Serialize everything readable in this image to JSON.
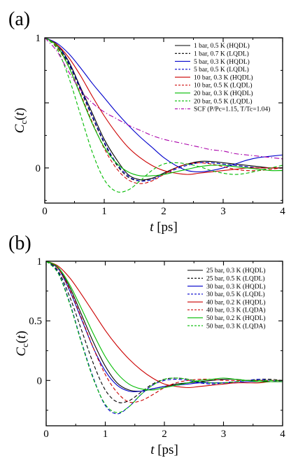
{
  "chart_data": [
    {
      "type": "line",
      "panel_label": "(a)",
      "xlabel": "t [ps]",
      "ylabel": "Cc(t)",
      "xlim": [
        0,
        4
      ],
      "ylim": [
        -0.27,
        1
      ],
      "xticks": [
        0,
        1,
        2,
        3,
        4
      ],
      "yticks": [
        0,
        0.5,
        1
      ],
      "ytick_labels": [
        "0",
        "",
        "1"
      ],
      "legend_position": "top-right",
      "series": [
        {
          "name": "1 bar, 0.5 K (HQDL)",
          "color": "#000000",
          "dash": "solid",
          "x": [
            0,
            0.2,
            0.4,
            0.6,
            0.8,
            1.0,
            1.2,
            1.4,
            1.6,
            1.8,
            2.0,
            2.2,
            2.4,
            2.6,
            2.8,
            3.0,
            3.2,
            3.4,
            3.6,
            3.8,
            4.0
          ],
          "y": [
            1,
            0.95,
            0.82,
            0.62,
            0.42,
            0.22,
            0.07,
            -0.05,
            -0.09,
            -0.08,
            -0.04,
            0.0,
            0.03,
            0.05,
            0.05,
            0.04,
            0.03,
            0.02,
            0.01,
            0.0,
            0.0
          ]
        },
        {
          "name": "1 bar, 0.7 K (LQDL)",
          "color": "#000000",
          "dash": "dashed",
          "x": [
            0,
            0.2,
            0.4,
            0.6,
            0.8,
            1.0,
            1.2,
            1.4,
            1.6,
            1.8,
            2.0,
            2.2,
            2.4,
            2.6,
            2.8,
            3.0,
            3.2,
            3.4,
            3.6,
            3.8,
            4.0
          ],
          "y": [
            1,
            0.94,
            0.8,
            0.6,
            0.39,
            0.19,
            0.03,
            -0.07,
            -0.1,
            -0.08,
            -0.04,
            0.0,
            0.03,
            0.04,
            0.04,
            0.03,
            0.02,
            0.01,
            0.0,
            0.0,
            0.0
          ]
        },
        {
          "name": "5 bar, 0.3 K (HQDL)",
          "color": "#0000cc",
          "dash": "solid",
          "x": [
            0,
            0.2,
            0.4,
            0.6,
            0.8,
            1.0,
            1.2,
            1.4,
            1.6,
            1.8,
            2.0,
            2.2,
            2.4,
            2.6,
            2.8,
            3.0,
            3.2,
            3.4,
            3.6,
            3.8,
            4.0
          ],
          "y": [
            1,
            0.96,
            0.88,
            0.77,
            0.65,
            0.54,
            0.43,
            0.33,
            0.24,
            0.16,
            0.08,
            0.02,
            -0.02,
            -0.03,
            -0.02,
            0.0,
            0.03,
            0.06,
            0.08,
            0.09,
            0.1
          ]
        },
        {
          "name": "5 bar, 0.5 K (LQDL)",
          "color": "#0000cc",
          "dash": "dashed",
          "x": [
            0,
            0.2,
            0.4,
            0.6,
            0.8,
            1.0,
            1.2,
            1.4,
            1.6,
            1.8,
            2.0,
            2.2,
            2.4,
            2.6,
            2.8,
            3.0,
            3.2,
            3.4,
            3.6,
            3.8,
            4.0
          ],
          "y": [
            1,
            0.95,
            0.81,
            0.61,
            0.4,
            0.2,
            0.04,
            -0.06,
            -0.1,
            -0.09,
            -0.05,
            -0.01,
            0.02,
            0.04,
            0.04,
            0.03,
            0.02,
            0.01,
            0.0,
            0.0,
            0.0
          ]
        },
        {
          "name": "10 bar, 0.3 K (HQDL)",
          "color": "#cc0000",
          "dash": "solid",
          "x": [
            0,
            0.2,
            0.4,
            0.6,
            0.8,
            1.0,
            1.2,
            1.4,
            1.6,
            1.8,
            2.0,
            2.2,
            2.4,
            2.6,
            2.8,
            3.0,
            3.2,
            3.4,
            3.6,
            3.8,
            4.0
          ],
          "y": [
            1,
            0.95,
            0.85,
            0.71,
            0.55,
            0.4,
            0.27,
            0.16,
            0.08,
            0.02,
            -0.02,
            -0.04,
            -0.05,
            -0.04,
            -0.03,
            -0.02,
            -0.01,
            0.0,
            0.0,
            0.0,
            0.0
          ]
        },
        {
          "name": "10 bar, 0.5 K (LQDL)",
          "color": "#cc0000",
          "dash": "dashed",
          "x": [
            0,
            0.2,
            0.4,
            0.6,
            0.8,
            1.0,
            1.2,
            1.4,
            1.6,
            1.8,
            2.0,
            2.2,
            2.4,
            2.6,
            2.8,
            3.0,
            3.2,
            3.4,
            3.6,
            3.8,
            4.0
          ],
          "y": [
            1,
            0.93,
            0.78,
            0.57,
            0.35,
            0.15,
            0.0,
            -0.09,
            -0.12,
            -0.1,
            -0.05,
            0.0,
            0.03,
            0.04,
            0.03,
            0.01,
            -0.01,
            -0.02,
            -0.02,
            -0.01,
            0.0
          ]
        },
        {
          "name": "20 bar, 0.3 K (HQDL)",
          "color": "#00bb00",
          "dash": "solid",
          "x": [
            0,
            0.2,
            0.4,
            0.6,
            0.8,
            1.0,
            1.2,
            1.4,
            1.6,
            1.8,
            2.0,
            2.2,
            2.4,
            2.6,
            2.8,
            3.0,
            3.2,
            3.4,
            3.6,
            3.8,
            4.0
          ],
          "y": [
            1,
            0.94,
            0.78,
            0.56,
            0.34,
            0.16,
            0.04,
            -0.03,
            -0.06,
            -0.06,
            -0.05,
            -0.03,
            -0.01,
            0.01,
            0.02,
            0.02,
            0.01,
            0.0,
            -0.01,
            -0.02,
            -0.02
          ]
        },
        {
          "name": "20 bar, 0.5 K (LQDL)",
          "color": "#00bb00",
          "dash": "dashed",
          "x": [
            0,
            0.2,
            0.4,
            0.6,
            0.8,
            1.0,
            1.2,
            1.4,
            1.6,
            1.8,
            2.0,
            2.2,
            2.4,
            2.6,
            2.8,
            3.0,
            3.2,
            3.4,
            3.6,
            3.8,
            4.0
          ],
          "y": [
            1,
            0.92,
            0.7,
            0.41,
            0.12,
            -0.09,
            -0.18,
            -0.17,
            -0.1,
            -0.02,
            0.03,
            0.04,
            0.03,
            0.01,
            -0.02,
            -0.04,
            -0.05,
            -0.04,
            -0.02,
            0.0,
            0.02
          ]
        },
        {
          "name": "SCF (P/Pc=1.15, T/Tc=1.04)",
          "color": "#aa00aa",
          "dash": "dashdot",
          "x": [
            0,
            0.2,
            0.4,
            0.6,
            0.8,
            1.0,
            1.2,
            1.4,
            1.6,
            1.8,
            2.0,
            2.2,
            2.4,
            2.6,
            2.8,
            3.0,
            3.2,
            3.4,
            3.6,
            3.8,
            4.0
          ],
          "y": [
            1,
            0.9,
            0.74,
            0.6,
            0.5,
            0.43,
            0.38,
            0.33,
            0.29,
            0.25,
            0.22,
            0.2,
            0.18,
            0.16,
            0.14,
            0.13,
            0.11,
            0.1,
            0.09,
            0.08,
            0.07
          ]
        }
      ]
    },
    {
      "type": "line",
      "panel_label": "(b)",
      "xlabel": "t [ps]",
      "ylabel": "Cc(t)",
      "xlim": [
        0,
        4
      ],
      "ylim": [
        -0.38,
        1
      ],
      "xticks": [
        0,
        1,
        2,
        3,
        4
      ],
      "yticks": [
        0,
        0.5,
        1
      ],
      "ytick_labels": [
        "0",
        "0.5",
        "1"
      ],
      "legend_position": "top-right",
      "series": [
        {
          "name": "25 bar, 0.3 K (HQDL)",
          "color": "#000000",
          "dash": "solid",
          "x": [
            0,
            0.2,
            0.4,
            0.6,
            0.8,
            1.0,
            1.2,
            1.4,
            1.6,
            1.8,
            2.0,
            2.2,
            2.4,
            2.6,
            2.8,
            3.0,
            3.2,
            3.4,
            3.6,
            3.8,
            4.0
          ],
          "y": [
            1,
            0.94,
            0.78,
            0.55,
            0.32,
            0.12,
            -0.02,
            -0.08,
            -0.09,
            -0.07,
            -0.05,
            -0.03,
            -0.02,
            -0.01,
            0.0,
            0.01,
            0.01,
            0.0,
            0.0,
            -0.01,
            -0.01
          ]
        },
        {
          "name": "25 bar, 0.5 K (LQDL)",
          "color": "#000000",
          "dash": "dashed",
          "x": [
            0,
            0.2,
            0.4,
            0.6,
            0.8,
            1.0,
            1.2,
            1.4,
            1.6,
            1.8,
            2.0,
            2.2,
            2.4,
            2.6,
            2.8,
            3.0,
            3.2,
            3.4,
            3.6,
            3.8,
            4.0
          ],
          "y": [
            1,
            0.92,
            0.7,
            0.42,
            0.14,
            -0.08,
            -0.18,
            -0.17,
            -0.1,
            -0.03,
            0.01,
            0.02,
            0.01,
            -0.01,
            -0.02,
            -0.02,
            -0.01,
            0.0,
            0.01,
            0.01,
            0.0
          ]
        },
        {
          "name": "30 bar, 0.3 K (HQDL)",
          "color": "#0000cc",
          "dash": "solid",
          "x": [
            0,
            0.2,
            0.4,
            0.6,
            0.8,
            1.0,
            1.2,
            1.4,
            1.6,
            1.8,
            2.0,
            2.2,
            2.4,
            2.6,
            2.8,
            3.0,
            3.2,
            3.4,
            3.6,
            3.8,
            4.0
          ],
          "y": [
            1,
            0.94,
            0.75,
            0.51,
            0.27,
            0.08,
            -0.04,
            -0.09,
            -0.09,
            -0.07,
            -0.05,
            -0.04,
            -0.03,
            -0.02,
            -0.02,
            -0.02,
            -0.02,
            -0.01,
            -0.01,
            -0.01,
            -0.01
          ]
        },
        {
          "name": "30 bar, 0.5 K (LQDL)",
          "color": "#0000cc",
          "dash": "dashed",
          "x": [
            0,
            0.2,
            0.4,
            0.6,
            0.8,
            1.0,
            1.2,
            1.4,
            1.6,
            1.8,
            2.0,
            2.2,
            2.4,
            2.6,
            2.8,
            3.0,
            3.2,
            3.4,
            3.6,
            3.8,
            4.0
          ],
          "y": [
            1,
            0.91,
            0.65,
            0.32,
            0.02,
            -0.21,
            -0.28,
            -0.22,
            -0.12,
            -0.04,
            0.0,
            0.01,
            0.0,
            -0.02,
            -0.03,
            -0.02,
            -0.01,
            0.0,
            0.01,
            0.0,
            -0.01
          ]
        },
        {
          "name": "40 bar, 0.2 K (HQDL)",
          "color": "#cc0000",
          "dash": "solid",
          "x": [
            0,
            0.2,
            0.4,
            0.6,
            0.8,
            1.0,
            1.2,
            1.4,
            1.6,
            1.8,
            2.0,
            2.2,
            2.4,
            2.6,
            2.8,
            3.0,
            3.2,
            3.4,
            3.6,
            3.8,
            4.0
          ],
          "y": [
            1,
            0.96,
            0.86,
            0.72,
            0.57,
            0.42,
            0.29,
            0.18,
            0.09,
            0.02,
            -0.03,
            -0.05,
            -0.06,
            -0.05,
            -0.04,
            -0.03,
            -0.02,
            -0.02,
            -0.02,
            -0.01,
            -0.01
          ]
        },
        {
          "name": "40 bar, 0.3 K (LQDA)",
          "color": "#cc0000",
          "dash": "dashed",
          "x": [
            0,
            0.2,
            0.4,
            0.6,
            0.8,
            1.0,
            1.2,
            1.4,
            1.6,
            1.8,
            2.0,
            2.2,
            2.4,
            2.6,
            2.8,
            3.0,
            3.2,
            3.4,
            3.6,
            3.8,
            4.0
          ],
          "y": [
            1,
            0.94,
            0.76,
            0.52,
            0.27,
            0.05,
            -0.1,
            -0.18,
            -0.17,
            -0.12,
            -0.06,
            -0.02,
            0.0,
            0.01,
            0.01,
            0.0,
            0.0,
            0.0,
            0.0,
            0.0,
            0.0
          ]
        },
        {
          "name": "50 bar, 0.2 K (HQDL)",
          "color": "#00bb00",
          "dash": "solid",
          "x": [
            0,
            0.2,
            0.4,
            0.6,
            0.8,
            1.0,
            1.2,
            1.4,
            1.6,
            1.8,
            2.0,
            2.2,
            2.4,
            2.6,
            2.8,
            3.0,
            3.2,
            3.4,
            3.6,
            3.8,
            4.0
          ],
          "y": [
            1,
            0.95,
            0.8,
            0.6,
            0.39,
            0.2,
            0.06,
            -0.03,
            -0.07,
            -0.08,
            -0.06,
            -0.04,
            -0.02,
            0.0,
            0.01,
            0.02,
            0.01,
            0.0,
            -0.01,
            -0.01,
            -0.01
          ]
        },
        {
          "name": "50 bar, 0.3 K (LQDA)",
          "color": "#00bb00",
          "dash": "dashed",
          "x": [
            0,
            0.2,
            0.4,
            0.6,
            0.8,
            1.0,
            1.2,
            1.4,
            1.6,
            1.8,
            2.0,
            2.2,
            2.4,
            2.6,
            2.8,
            3.0,
            3.2,
            3.4,
            3.6,
            3.8,
            4.0
          ],
          "y": [
            1,
            0.9,
            0.64,
            0.31,
            0.01,
            -0.2,
            -0.27,
            -0.22,
            -0.12,
            -0.04,
            0.01,
            0.02,
            0.01,
            -0.01,
            -0.02,
            -0.02,
            -0.01,
            0.0,
            0.0,
            0.0,
            0.0
          ]
        }
      ]
    }
  ]
}
